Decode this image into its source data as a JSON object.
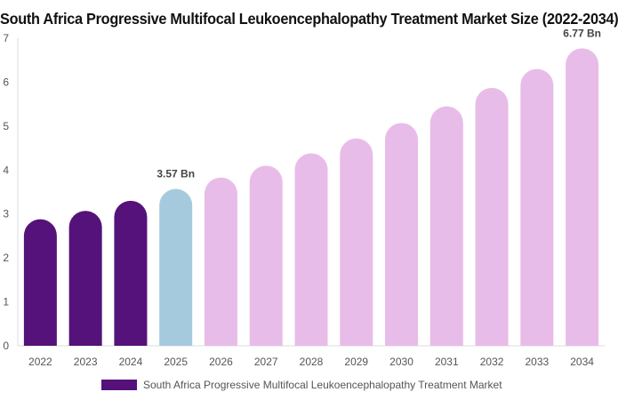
{
  "chart_data": {
    "type": "bar",
    "title": "South Africa Progressive Multifocal Leukoencephalopathy Treatment Market Size (2022-2034)",
    "categories": [
      "2022",
      "2023",
      "2024",
      "2025",
      "2026",
      "2027",
      "2028",
      "2029",
      "2030",
      "2031",
      "2032",
      "2033",
      "2034"
    ],
    "series": [
      {
        "name": "South Africa Progressive Multifocal Leukoencephalopathy Treatment Market",
        "values": [
          2.88,
          3.07,
          3.3,
          3.57,
          3.83,
          4.1,
          4.38,
          4.72,
          5.07,
          5.45,
          5.87,
          6.3,
          6.77
        ]
      }
    ],
    "bar_colors": [
      "#54127a",
      "#54127a",
      "#54127a",
      "#a5cadd",
      "#e8bce8",
      "#e8bce8",
      "#e8bce8",
      "#e8bce8",
      "#e8bce8",
      "#e8bce8",
      "#e8bce8",
      "#e8bce8",
      "#e8bce8"
    ],
    "data_labels": [
      {
        "category": "2025",
        "text": "3.57 Bn"
      },
      {
        "category": "2034",
        "text": "6.77 Bn"
      }
    ],
    "ylim": [
      0,
      7
    ],
    "yticks": [
      "0",
      "1",
      "2",
      "3",
      "4",
      "5",
      "6",
      "7"
    ],
    "xlabel": "",
    "ylabel": "",
    "grid": false,
    "legend_position": "bottom"
  },
  "legend": {
    "label": "South Africa Progressive Multifocal Leukoencephalopathy Treatment Market",
    "color": "#54127a"
  }
}
